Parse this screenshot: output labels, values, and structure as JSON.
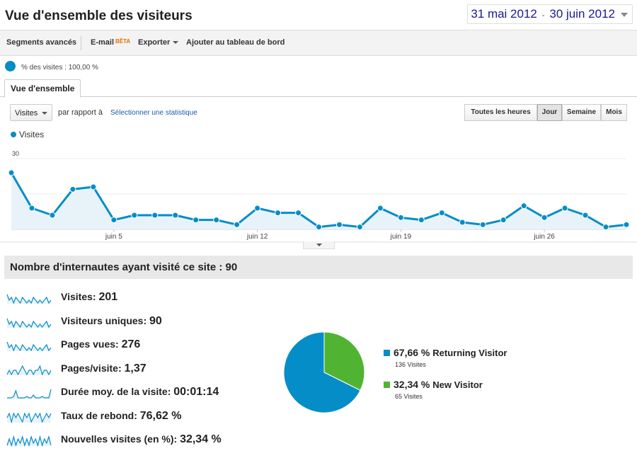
{
  "header": {
    "title": "Vue d'ensemble des visiteurs",
    "date_start": "31 mai 2012",
    "date_sep": "-",
    "date_end": "30 juin 2012"
  },
  "toolbar": {
    "segments": "Segments avancés",
    "email": "E-mail",
    "email_badge": "BÊTA",
    "export": "Exporter",
    "dashboard": "Ajouter au tableau de bord"
  },
  "segment": {
    "label": "% des visites : 100,00 %"
  },
  "tabs": [
    {
      "label": "Vue d'ensemble"
    }
  ],
  "controls": {
    "metric": "Visites",
    "compare_label": "par rapport à",
    "compare_link": "Sélectionner une statistique",
    "granularity": [
      {
        "label": "Toutes les heures",
        "active": false
      },
      {
        "label": "Jour",
        "active": true
      },
      {
        "label": "Semaine",
        "active": false
      },
      {
        "label": "Mois",
        "active": false
      }
    ]
  },
  "chart_data": {
    "type": "area",
    "series": [
      {
        "name": "Visites",
        "values": [
          24,
          9,
          6,
          17,
          18,
          4,
          6,
          6,
          6,
          4,
          4,
          2,
          9,
          7,
          7,
          1,
          2,
          1,
          9,
          5,
          4,
          7,
          3,
          2,
          4,
          10,
          5,
          9,
          6,
          1,
          2
        ]
      }
    ],
    "x_tick_labels": [
      {
        "label": "juin 5",
        "index": 5
      },
      {
        "label": "juin 12",
        "index": 12
      },
      {
        "label": "juin 19",
        "index": 19
      },
      {
        "label": "juin 26",
        "index": 26
      }
    ],
    "y_ticks": [
      15,
      30
    ],
    "ylim": [
      0,
      30
    ],
    "color": "#058dc7",
    "fill": "#e8f3f9"
  },
  "summary": {
    "title": "Nombre d'internautes ayant visité ce site : 90"
  },
  "stats": [
    {
      "label": "Visites:",
      "value": "201",
      "spark": [
        6,
        4,
        5,
        3,
        5,
        4,
        3,
        5,
        4,
        3,
        4,
        3,
        5,
        4,
        3,
        4,
        3,
        4,
        5,
        3,
        4
      ]
    },
    {
      "label": "Visiteurs uniques:",
      "value": "90",
      "spark": [
        6,
        4,
        5,
        3,
        5,
        4,
        3,
        5,
        4,
        3,
        4,
        3,
        5,
        4,
        3,
        4,
        3,
        4,
        5,
        3,
        4
      ]
    },
    {
      "label": "Pages vues:",
      "value": "276",
      "spark": [
        6,
        4,
        5,
        3,
        5,
        4,
        3,
        5,
        4,
        3,
        4,
        3,
        5,
        4,
        3,
        4,
        3,
        4,
        5,
        3,
        4
      ]
    },
    {
      "label": "Pages/visite:",
      "value": "1,37",
      "spark": [
        3,
        4,
        3,
        4,
        4,
        3,
        4,
        5,
        4,
        3,
        4,
        4,
        3,
        4,
        4,
        5,
        3,
        4,
        4,
        3,
        4
      ]
    },
    {
      "label": "Durée moy. de la visite:",
      "value": "00:01:14",
      "spark": [
        1,
        1,
        1,
        2,
        6,
        1,
        1,
        1,
        1,
        2,
        1,
        1,
        3,
        1,
        1,
        1,
        2,
        1,
        1,
        1,
        7
      ]
    },
    {
      "label": "Taux de rebond:",
      "value": "76,62 %",
      "spark": [
        4,
        5,
        3,
        5,
        4,
        5,
        4,
        3,
        5,
        4,
        5,
        3,
        4,
        5,
        4,
        5,
        3,
        4,
        5,
        4,
        5
      ]
    },
    {
      "label": "Nouvelles visites (en %):",
      "value": "32,34 %",
      "spark": [
        2,
        5,
        2,
        6,
        2,
        5,
        3,
        6,
        2,
        5,
        2,
        6,
        3,
        5,
        2,
        6,
        2,
        5,
        3,
        6,
        2
      ]
    }
  ],
  "pie": {
    "slices": [
      {
        "pct": "67,66 %",
        "value": 67.66,
        "name": "Returning Visitor",
        "sub": "136 Visites",
        "color": "#058dc7"
      },
      {
        "pct": "32,34 %",
        "value": 32.34,
        "name": "New Visitor",
        "sub": "65 Visites",
        "color": "#50b432"
      }
    ]
  }
}
